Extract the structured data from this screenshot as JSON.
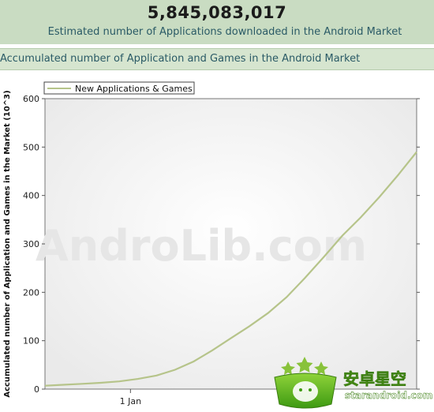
{
  "header": {
    "count": "5,845,083,017",
    "caption": "Estimated number of Applications downloaded in the Android Market"
  },
  "section": {
    "title": "Accumulated number of Application and Games in the Android Market"
  },
  "watermark": "AndroLib.com",
  "logo": {
    "text_cn": "安卓星空",
    "text_url": "starandroid.com"
  },
  "colors": {
    "series": "#b6c48a",
    "banner": "#c9dcc2"
  },
  "chart_data": {
    "type": "line",
    "ylabel": "Accumulated number of Application and Games in the Market (10^3)",
    "xlabel": "",
    "ylim": [
      0,
      600
    ],
    "yticks": [
      0,
      100,
      200,
      300,
      400,
      500,
      600
    ],
    "xticks": [
      {
        "label": "1 Jan",
        "t": 0.23
      },
      {
        "label": "1 Jan",
        "t": 0.68
      }
    ],
    "grid": false,
    "legend": "top-left",
    "series": [
      {
        "name": "New Applications & Games",
        "x": [
          0,
          0.05,
          0.1,
          0.15,
          0.2,
          0.25,
          0.3,
          0.35,
          0.4,
          0.45,
          0.5,
          0.55,
          0.6,
          0.65,
          0.7,
          0.75,
          0.8,
          0.85,
          0.9,
          0.95,
          1.0
        ],
        "values": [
          7,
          9,
          11,
          13,
          16,
          21,
          28,
          40,
          57,
          80,
          105,
          130,
          157,
          190,
          230,
          273,
          317,
          355,
          397,
          442,
          490
        ]
      }
    ]
  }
}
